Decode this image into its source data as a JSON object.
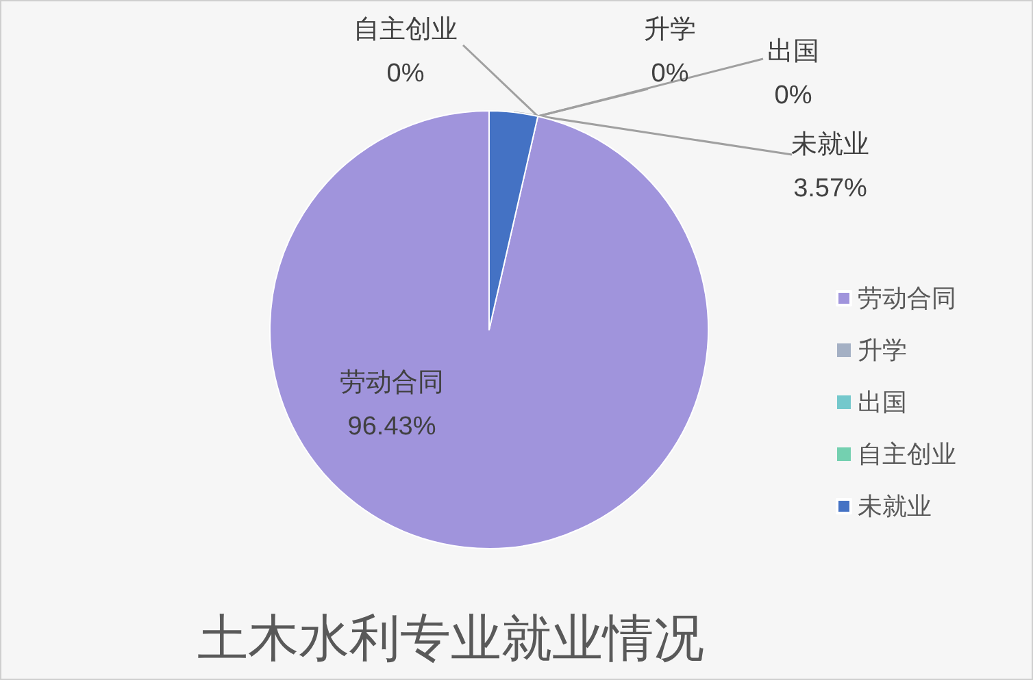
{
  "chart_data": {
    "type": "pie",
    "title": "土木水利专业就业情况",
    "categories": [
      "劳动合同",
      "升学",
      "出国",
      "自主创业",
      "未就业"
    ],
    "values": [
      96.43,
      0,
      0,
      0,
      3.57
    ],
    "value_labels": [
      "96.43%",
      "0%",
      "0%",
      "0%",
      "3.57%"
    ],
    "colors": [
      "#a094dc",
      "#a4b0c4",
      "#74c8cc",
      "#74d0b0",
      "#4472c4"
    ],
    "legend": "right"
  }
}
